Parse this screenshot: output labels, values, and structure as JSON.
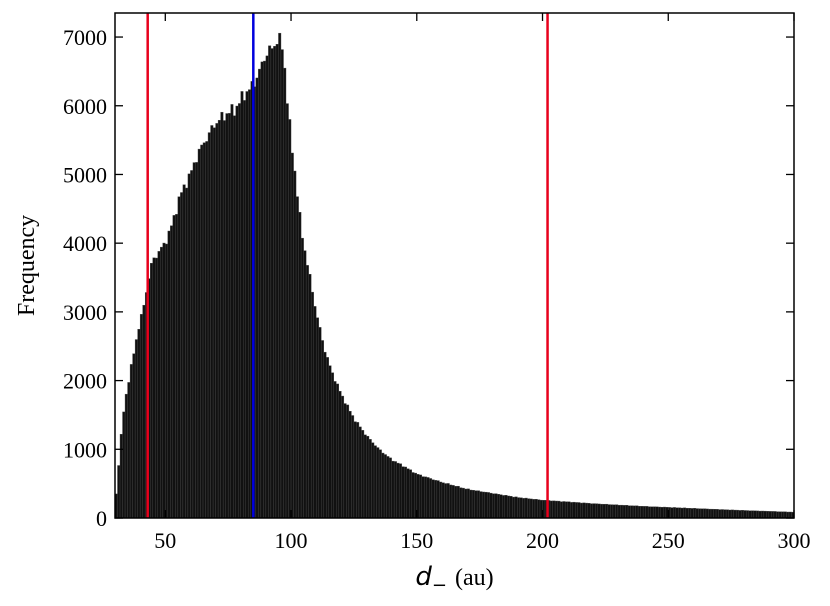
{
  "chart_data": {
    "type": "bar",
    "title": "",
    "xlabel": {
      "variable": "d",
      "subscript": "−",
      "unit": "(au)"
    },
    "ylabel": "Frequency",
    "xlim": [
      30,
      300
    ],
    "ylim": [
      0,
      7350
    ],
    "bin_width": 1,
    "grid": false,
    "xticks": [
      50,
      100,
      150,
      200,
      250,
      300
    ],
    "yticks": [
      0,
      1000,
      2000,
      3000,
      4000,
      5000,
      6000,
      7000
    ],
    "xtick_labels": [
      "50",
      "100",
      "150",
      "200",
      "250",
      "300"
    ],
    "ytick_labels": [
      "0",
      "1000",
      "2000",
      "3000",
      "4000",
      "5000",
      "6000",
      "7000"
    ],
    "bar_color": "#111111",
    "profile": [
      [
        30,
        150
      ],
      [
        31,
        550
      ],
      [
        32,
        1000
      ],
      [
        33,
        1400
      ],
      [
        34,
        1700
      ],
      [
        35,
        1900
      ],
      [
        36,
        2100
      ],
      [
        37,
        2300
      ],
      [
        38,
        2500
      ],
      [
        39,
        2700
      ],
      [
        40,
        2850
      ],
      [
        41,
        3000
      ],
      [
        42,
        3200
      ],
      [
        43,
        3400
      ],
      [
        44,
        3600
      ],
      [
        45,
        3750
      ],
      [
        46,
        3800
      ],
      [
        47,
        3850
      ],
      [
        48,
        3900
      ],
      [
        50,
        4000
      ],
      [
        53,
        4300
      ],
      [
        56,
        4700
      ],
      [
        60,
        5000
      ],
      [
        63,
        5300
      ],
      [
        66,
        5500
      ],
      [
        70,
        5750
      ],
      [
        75,
        5900
      ],
      [
        78,
        5950
      ],
      [
        81,
        6150
      ],
      [
        84,
        6250
      ],
      [
        87,
        6450
      ],
      [
        90,
        6750
      ],
      [
        93,
        6850
      ],
      [
        95,
        7000
      ],
      [
        96,
        6900
      ],
      [
        97,
        6800
      ],
      [
        98,
        6300
      ],
      [
        99,
        5900
      ],
      [
        100,
        5500
      ],
      [
        102,
        4900
      ],
      [
        104,
        4200
      ],
      [
        106,
        3800
      ],
      [
        108,
        3400
      ],
      [
        110,
        3000
      ],
      [
        113,
        2500
      ],
      [
        116,
        2150
      ],
      [
        120,
        1800
      ],
      [
        125,
        1450
      ],
      [
        130,
        1200
      ],
      [
        135,
        1000
      ],
      [
        140,
        850
      ],
      [
        145,
        750
      ],
      [
        150,
        640
      ],
      [
        160,
        520
      ],
      [
        170,
        420
      ],
      [
        180,
        360
      ],
      [
        190,
        300
      ],
      [
        200,
        260
      ],
      [
        220,
        210
      ],
      [
        240,
        170
      ],
      [
        260,
        140
      ],
      [
        280,
        110
      ],
      [
        300,
        85
      ]
    ],
    "vlines": [
      {
        "x": 43,
        "color": "#e8001c"
      },
      {
        "x": 85,
        "color": "#0000dd"
      },
      {
        "x": 202,
        "color": "#e8001c"
      }
    ]
  }
}
